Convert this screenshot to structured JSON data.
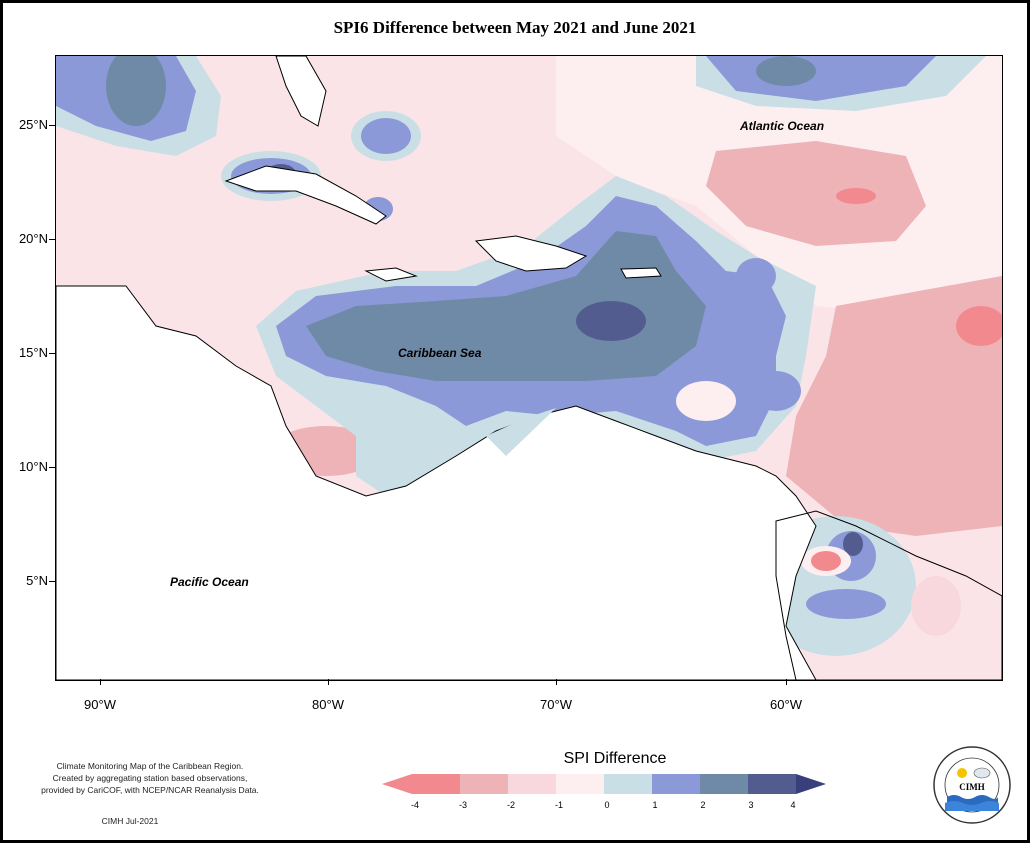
{
  "title": "SPI6 Difference between May 2021 and June 2021",
  "axes": {
    "lat_labels": [
      "25°N",
      "20°N",
      "15°N",
      "10°N",
      "5°N"
    ],
    "lon_labels": [
      "90°W",
      "80°W",
      "70°W",
      "60°W"
    ]
  },
  "ocean_labels": {
    "atlantic": "Atlantic Ocean",
    "caribbean": "Caribbean Sea",
    "pacific": "Pacific Ocean"
  },
  "legend": {
    "title": "SPI Difference",
    "ticks": [
      "-4",
      "-3",
      "-2",
      "-1",
      "0",
      "1",
      "2",
      "3",
      "4"
    ],
    "colors": [
      "#f2898f",
      "#edb3b7",
      "#f8d8dd",
      "#fdeef0",
      "#c9dfe5",
      "#8c99d8",
      "#6f8aa6",
      "#525c8f",
      "#393f7a"
    ]
  },
  "footer": {
    "line1": "Climate Monitoring Map of the Caribbean Region.",
    "line2": "Created by aggregating station based observations,",
    "line3": "provided by CariCOF, with NCEP/NCAR Reanalysis Data.",
    "credit": "CIMH Jul-2021"
  },
  "logo": {
    "text": "CIMH",
    "ring_text": "Caribbean Institute for Meteorology and Hydrology",
    "icon": "cimh-logo-icon"
  }
}
